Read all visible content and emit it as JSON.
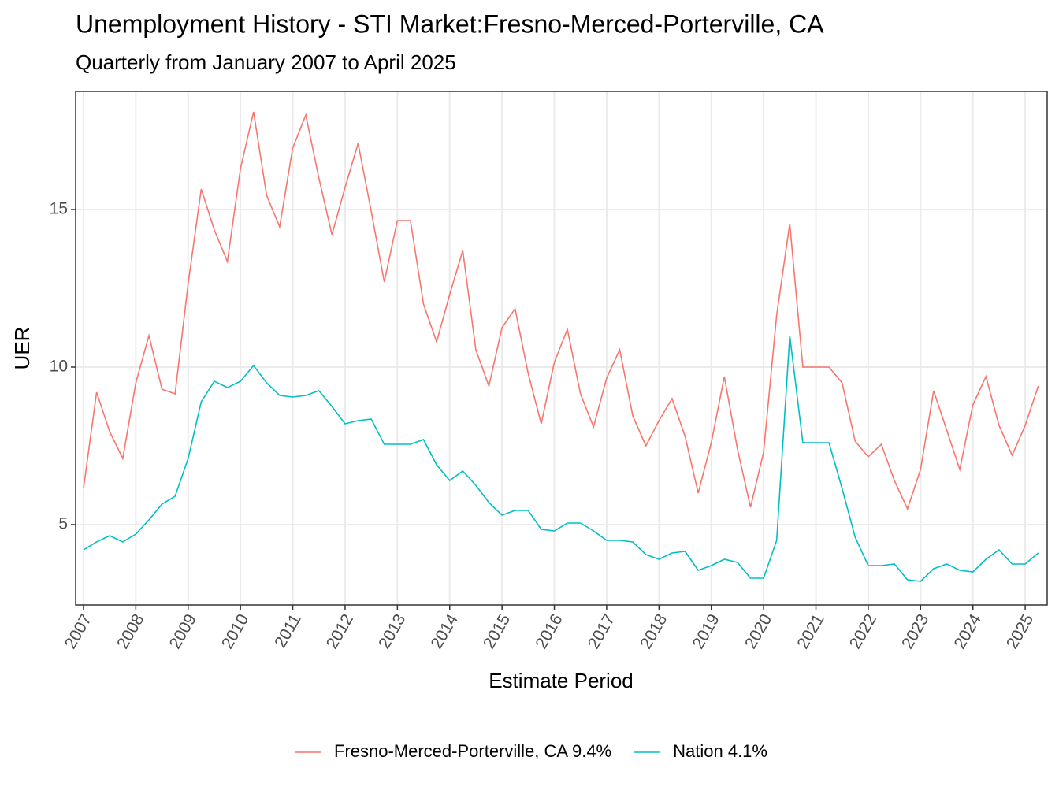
{
  "chart_data": {
    "type": "line",
    "title": "Unemployment History - STI Market:Fresno-Merced-Porterville, CA",
    "subtitle": "Quarterly from January 2007 to April 2025",
    "x_label": "Estimate Period",
    "y_label": "UER",
    "x": [
      2007,
      2007.25,
      2007.5,
      2007.75,
      2008,
      2008.25,
      2008.5,
      2008.75,
      2009,
      2009.25,
      2009.5,
      2009.75,
      2010,
      2010.25,
      2010.5,
      2010.75,
      2011,
      2011.25,
      2011.5,
      2011.75,
      2012,
      2012.25,
      2012.5,
      2012.75,
      2013,
      2013.25,
      2013.5,
      2013.75,
      2014,
      2014.25,
      2014.5,
      2014.75,
      2015,
      2015.25,
      2015.5,
      2015.75,
      2016,
      2016.25,
      2016.5,
      2016.75,
      2017,
      2017.25,
      2017.5,
      2017.75,
      2018,
      2018.25,
      2018.5,
      2018.75,
      2019,
      2019.25,
      2019.5,
      2019.75,
      2020,
      2020.25,
      2020.5,
      2020.75,
      2021,
      2021.25,
      2021.5,
      2021.75,
      2022,
      2022.25,
      2022.5,
      2022.75,
      2023,
      2023.25,
      2023.5,
      2023.75,
      2024,
      2024.25,
      2024.5,
      2024.75,
      2025,
      2025.25
    ],
    "series": [
      {
        "name": "Fresno-Merced-Porterville, CA 9.4%",
        "color": "#F8766D",
        "values": [
          6.15,
          9.2,
          7.95,
          7.1,
          9.5,
          11.0,
          9.3,
          9.15,
          12.65,
          15.65,
          14.35,
          13.35,
          16.3,
          18.1,
          15.45,
          14.45,
          16.95,
          18.0,
          16.0,
          14.2,
          15.7,
          17.1,
          14.95,
          12.7,
          14.65,
          14.65,
          12.0,
          10.8,
          12.3,
          13.7,
          10.55,
          9.4,
          11.25,
          11.85,
          9.8,
          8.2,
          10.15,
          11.2,
          9.15,
          8.1,
          9.65,
          10.55,
          8.45,
          7.5,
          8.3,
          9.0,
          7.8,
          6.0,
          7.6,
          9.7,
          7.4,
          5.55,
          7.3,
          11.65,
          14.55,
          10.0,
          10.0,
          10.0,
          9.5,
          7.65,
          7.15,
          7.55,
          6.4,
          5.5,
          6.75,
          9.25,
          8.0,
          6.75,
          8.8,
          9.7,
          8.15,
          7.2,
          8.15,
          9.4
        ]
      },
      {
        "name": "Nation 4.1%",
        "color": "#00BFC4",
        "values": [
          4.2,
          4.45,
          4.65,
          4.45,
          4.7,
          5.15,
          5.65,
          5.9,
          7.1,
          8.9,
          9.55,
          9.35,
          9.55,
          10.05,
          9.5,
          9.1,
          9.05,
          9.1,
          9.25,
          8.75,
          8.2,
          8.3,
          8.35,
          7.55,
          7.55,
          7.55,
          7.7,
          6.9,
          6.4,
          6.7,
          6.25,
          5.7,
          5.3,
          5.45,
          5.45,
          4.85,
          4.8,
          5.05,
          5.05,
          4.8,
          4.5,
          4.5,
          4.45,
          4.05,
          3.9,
          4.1,
          4.15,
          3.55,
          3.7,
          3.9,
          3.8,
          3.3,
          3.3,
          4.5,
          11.0,
          7.6,
          7.6,
          7.6,
          6.15,
          4.6,
          3.7,
          3.7,
          3.75,
          3.25,
          3.2,
          3.6,
          3.75,
          3.55,
          3.5,
          3.9,
          4.2,
          3.75,
          3.75,
          4.1
        ]
      }
    ],
    "xlim": [
      2006.85,
      2025.42
    ],
    "xticks": [
      2007,
      2008,
      2009,
      2010,
      2011,
      2012,
      2013,
      2014,
      2015,
      2016,
      2017,
      2018,
      2019,
      2020,
      2021,
      2022,
      2023,
      2024,
      2025
    ],
    "ylim": [
      2.45,
      18.75
    ],
    "yticks": [
      5,
      10,
      15
    ],
    "grid": true,
    "legend": "bottom"
  }
}
